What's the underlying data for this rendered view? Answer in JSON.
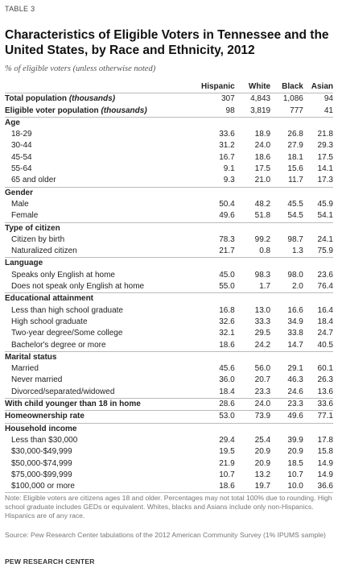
{
  "table_label": "TABLE 3",
  "title": "Characteristics of Eligible Voters in Tennessee and the United States, by Race and Ethnicity, 2012",
  "subtitle": "% of eligible voters (unless otherwise noted)",
  "columns": [
    "Hispanic",
    "White",
    "Black",
    "Asian"
  ],
  "totals": [
    {
      "label": "Total population",
      "unit": "(thousands)",
      "values": [
        "307",
        "4,843",
        "1,086",
        "94"
      ]
    },
    {
      "label": "Eligible voter population",
      "unit": "(thousands)",
      "values": [
        "98",
        "3,819",
        "777",
        "41"
      ]
    }
  ],
  "sections": [
    {
      "title": "Age",
      "rows": [
        {
          "label": "18-29",
          "values": [
            "33.6",
            "18.9",
            "26.8",
            "21.8"
          ]
        },
        {
          "label": "30-44",
          "values": [
            "31.2",
            "24.0",
            "27.9",
            "29.3"
          ]
        },
        {
          "label": "45-54",
          "values": [
            "16.7",
            "18.6",
            "18.1",
            "17.5"
          ]
        },
        {
          "label": "55-64",
          "values": [
            "9.1",
            "17.5",
            "15.6",
            "14.1"
          ]
        },
        {
          "label": "65 and older",
          "values": [
            "9.3",
            "21.0",
            "11.7",
            "17.3"
          ]
        }
      ]
    },
    {
      "title": "Gender",
      "rows": [
        {
          "label": "Male",
          "values": [
            "50.4",
            "48.2",
            "45.5",
            "45.9"
          ]
        },
        {
          "label": "Female",
          "values": [
            "49.6",
            "51.8",
            "54.5",
            "54.1"
          ]
        }
      ]
    },
    {
      "title": "Type of citizen",
      "rows": [
        {
          "label": "Citizen by birth",
          "values": [
            "78.3",
            "99.2",
            "98.7",
            "24.1"
          ]
        },
        {
          "label": "Naturalized citizen",
          "values": [
            "21.7",
            "0.8",
            "1.3",
            "75.9"
          ]
        }
      ]
    },
    {
      "title": "Language",
      "rows": [
        {
          "label": "Speaks only English at home",
          "values": [
            "45.0",
            "98.3",
            "98.0",
            "23.6"
          ]
        },
        {
          "label": "Does not speak only English at home",
          "values": [
            "55.0",
            "1.7",
            "2.0",
            "76.4"
          ]
        }
      ]
    },
    {
      "title": "Educational attainment",
      "rows": [
        {
          "label": "Less than high school graduate",
          "values": [
            "16.8",
            "13.0",
            "16.6",
            "16.4"
          ]
        },
        {
          "label": "High school graduate",
          "values": [
            "32.6",
            "33.3",
            "34.9",
            "18.4"
          ]
        },
        {
          "label": "Two-year degree/Some college",
          "values": [
            "32.1",
            "29.5",
            "33.8",
            "24.7"
          ]
        },
        {
          "label": "Bachelor's degree or more",
          "values": [
            "18.6",
            "24.2",
            "14.7",
            "40.5"
          ]
        }
      ]
    },
    {
      "title": "Marital status",
      "rows": [
        {
          "label": "Married",
          "values": [
            "45.6",
            "56.0",
            "29.1",
            "60.1"
          ]
        },
        {
          "label": "Never married",
          "values": [
            "36.0",
            "20.7",
            "46.3",
            "26.3"
          ]
        },
        {
          "label": "Divorced/separated/widowed",
          "values": [
            "18.4",
            "23.3",
            "24.6",
            "13.6"
          ]
        }
      ]
    }
  ],
  "child_row": {
    "label": "With child younger than 18 in home",
    "values": [
      "28.6",
      "24.0",
      "23.3",
      "33.6"
    ]
  },
  "home_row": {
    "label": "Homeownership rate",
    "values": [
      "53.0",
      "73.9",
      "49.6",
      "77.1"
    ]
  },
  "income": {
    "title": "Household income",
    "rows": [
      {
        "label": "Less than $30,000",
        "values": [
          "29.4",
          "25.4",
          "39.9",
          "17.8"
        ]
      },
      {
        "label": "$30,000-$49,999",
        "values": [
          "19.5",
          "20.9",
          "20.9",
          "15.8"
        ]
      },
      {
        "label": "$50,000-$74,999",
        "values": [
          "21.9",
          "20.9",
          "18.5",
          "14.9"
        ]
      },
      {
        "label": "$75,000-$99,999",
        "values": [
          "10.7",
          "13.2",
          "10.7",
          "14.9"
        ]
      },
      {
        "label": "$100,000 or more",
        "values": [
          "18.6",
          "19.7",
          "10.0",
          "36.6"
        ]
      }
    ]
  },
  "note": "Note: Eligible voters are citizens ages 18 and older. Percentages may not total 100% due to rounding. High school graduate includes GEDs or equivalent. Whites, blacks and Asians include only non-Hispanics. Hispanics are of any race.",
  "source": "Source: Pew Research Center tabulations of the 2012 American Community Survey (1% IPUMS sample)",
  "brand": "PEW RESEARCH CENTER"
}
